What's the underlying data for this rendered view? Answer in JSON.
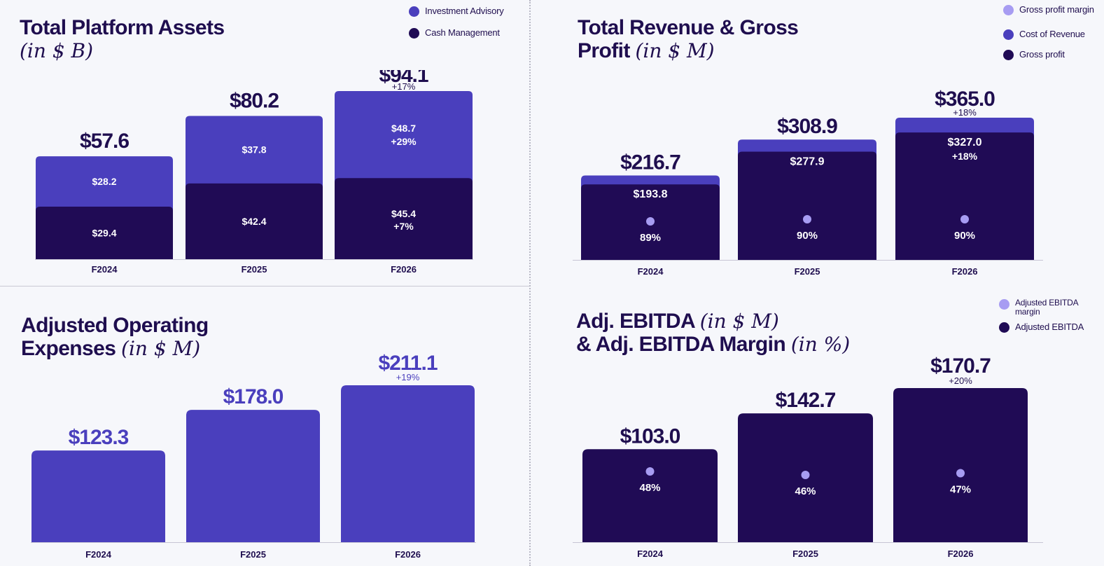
{
  "colors": {
    "navy": "#200b55",
    "purple": "#4a3fbd",
    "lavender": "#a79cf2",
    "text": "#1f0e4f",
    "axis": "#c7c5d4"
  },
  "assets": {
    "title_bold": "Total Platform Assets",
    "title_italic": "(in $ B)",
    "legend": [
      {
        "label": "Investment Advisory",
        "color": "#4a3fbd"
      },
      {
        "label": "Cash Management",
        "color": "#200b55"
      }
    ]
  },
  "revenue": {
    "title_line1": "Total Revenue & Gross",
    "title_line2_bold": "Profit",
    "title_italic": "(in $ M)",
    "legend": [
      {
        "label": "Gross profit margin",
        "color": "#a79cf2"
      },
      {
        "label": "Cost of Revenue",
        "color": "#4a3fbd"
      },
      {
        "label": "Gross profit",
        "color": "#200b55"
      }
    ]
  },
  "opex": {
    "title_line1": "Adjusted Operating",
    "title_line2_bold": "Expenses",
    "title_italic": "(in $ M)"
  },
  "ebitda": {
    "title_line1_bold": "Adj. EBITDA",
    "title_line1_italic": "(in $ M)",
    "title_line2_bold": "& Adj. EBITDA Margin",
    "title_line2_italic": "(in %)",
    "legend": [
      {
        "label": "Adjusted EBITDA margin",
        "color": "#a79cf2"
      },
      {
        "label": "Adjusted EBITDA",
        "color": "#200b55"
      }
    ]
  },
  "chart_data": [
    {
      "id": "assets",
      "type": "bar",
      "stacked": true,
      "title": "Total Platform Assets (in $ B)",
      "categories": [
        "F2024",
        "F2025",
        "F2026"
      ],
      "series": [
        {
          "name": "Cash Management",
          "values": [
            29.4,
            42.4,
            45.4
          ],
          "labels": [
            "$29.4",
            "$42.4",
            "$45.4"
          ],
          "growth": [
            "",
            "",
            "+7%"
          ]
        },
        {
          "name": "Investment Advisory",
          "values": [
            28.2,
            37.8,
            48.7
          ],
          "labels": [
            "$28.2",
            "$37.8",
            "$48.7"
          ],
          "growth": [
            "",
            "",
            "+29%"
          ]
        }
      ],
      "totals": [
        57.6,
        80.2,
        94.1
      ],
      "total_labels": [
        "$57.6",
        "$80.2",
        "$94.1"
      ],
      "total_growth": [
        "",
        "",
        "+17%"
      ],
      "ylim": [
        0,
        100
      ]
    },
    {
      "id": "revenue",
      "type": "bar",
      "stacked": true,
      "title": "Total Revenue & Gross Profit (in $ M)",
      "categories": [
        "F2024",
        "F2025",
        "F2026"
      ],
      "series": [
        {
          "name": "Gross profit",
          "values": [
            193.8,
            277.9,
            327.0
          ],
          "labels": [
            "$193.8",
            "$277.9",
            "$327.0"
          ],
          "growth": [
            "",
            "",
            "+18%"
          ]
        },
        {
          "name": "Cost of Revenue",
          "values": [
            22.9,
            31.0,
            38.0
          ],
          "labels": [
            "",
            "",
            ""
          ],
          "growth": [
            "",
            "",
            ""
          ]
        }
      ],
      "totals": [
        216.7,
        308.9,
        365.0
      ],
      "total_labels": [
        "$216.7",
        "$308.9",
        "$365.0"
      ],
      "total_growth": [
        "",
        "",
        "+18%"
      ],
      "margin": {
        "name": "Gross profit margin",
        "values": [
          89,
          90,
          90
        ],
        "labels": [
          "89%",
          "90%",
          "90%"
        ]
      },
      "ylim": [
        0,
        400
      ]
    },
    {
      "id": "opex",
      "type": "bar",
      "title": "Adjusted Operating Expenses (in $ M)",
      "categories": [
        "F2024",
        "F2025",
        "F2026"
      ],
      "values": [
        123.3,
        178.0,
        211.1
      ],
      "value_labels": [
        "$123.3",
        "$178.0",
        "$211.1"
      ],
      "growth": [
        "",
        "",
        "+19%"
      ],
      "ylim": [
        0,
        240
      ]
    },
    {
      "id": "ebitda",
      "type": "bar",
      "title": "Adj. EBITDA (in $ M) & Adj. EBITDA Margin (in %)",
      "categories": [
        "F2024",
        "F2025",
        "F2026"
      ],
      "values": [
        103.0,
        142.7,
        170.7
      ],
      "value_labels": [
        "$103.0",
        "$142.7",
        "$170.7"
      ],
      "growth": [
        "",
        "",
        "+20%"
      ],
      "margin": {
        "name": "Adjusted EBITDA margin",
        "values": [
          48,
          46,
          47
        ],
        "labels": [
          "48%",
          "46%",
          "47%"
        ]
      },
      "ylim": [
        0,
        190
      ]
    }
  ]
}
